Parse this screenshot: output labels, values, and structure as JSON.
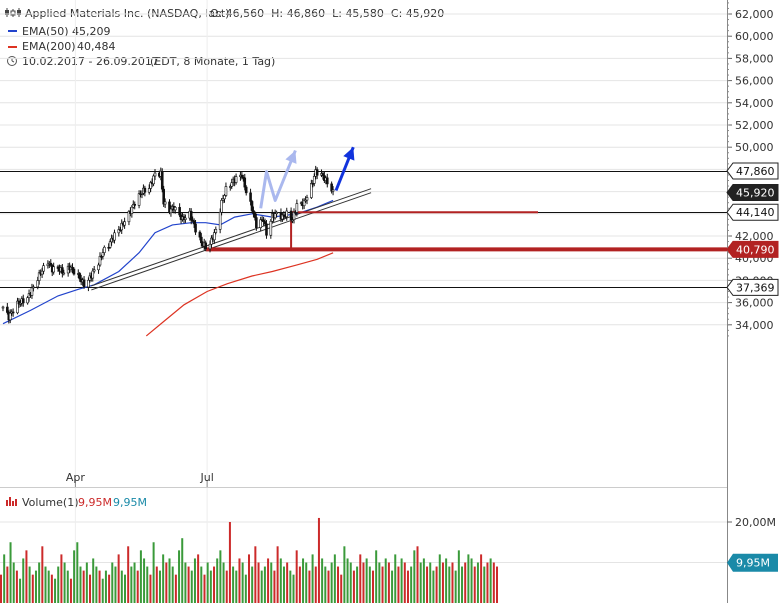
{
  "header": {
    "title": "Applied Materials Inc. (NASDAQ, last)",
    "ohlc": "O: 46,560  H: 46,860  L: 45,580  C: 45,920",
    "ema50_label": "EMA(50)",
    "ema50_value": "45,209",
    "ema200_label": "EMA(200)",
    "ema200_value": "40,484",
    "period": "10.02.2017 - 26.09.2017",
    "period_note": "(EDT, 8 Monate, 1 Tag)"
  },
  "volume_header": {
    "label": "Volume(1)",
    "value1": "9,95M",
    "value2": "9,95M"
  },
  "colors": {
    "up": "#3a9a3a",
    "down": "#cc2a2a",
    "ema50": "#2244cc",
    "ema200": "#dd3322",
    "support": "#b22222",
    "arrow_blue": "#1133dd",
    "arrow_light": "#aab8ee",
    "last_price_bg": "#222222",
    "volume_tag_bg": "#1a8aa8"
  },
  "chart_data": [
    {
      "type": "candlestick",
      "title": "Applied Materials Inc. (NASDAQ, last)",
      "ylim": [
        33000,
        63000
      ],
      "yticks": [
        34000,
        36000,
        38000,
        40000,
        42000,
        44000,
        46000,
        48000,
        50000,
        52000,
        54000,
        56000,
        58000,
        60000,
        62000
      ],
      "ytick_labels": [
        "34,000",
        "36,000",
        "38,000",
        "40,000",
        "42,000",
        "44,000",
        "46,000",
        "48,000",
        "50,000",
        "52,000",
        "54,000",
        "56,000",
        "58,000",
        "60,000",
        "62,000"
      ],
      "x_labels": [
        {
          "label": "Apr",
          "date": "2017-04-01"
        },
        {
          "label": "Jul",
          "date": "2017-07-01"
        }
      ],
      "date_range": [
        "2017-02-10",
        "2017-09-26"
      ],
      "price_tags": [
        {
          "value": 47860,
          "label": "47,860",
          "style": "outline"
        },
        {
          "value": 45920,
          "label": "45,920",
          "style": "last"
        },
        {
          "value": 44140,
          "label": "44,140",
          "style": "outline"
        },
        {
          "value": 40790,
          "label": "40,790",
          "style": "support"
        },
        {
          "value": 37369,
          "label": "37,369",
          "style": "outline"
        }
      ],
      "horizontal_lines": [
        47860,
        44140,
        37369
      ],
      "support_line": {
        "value": 40790,
        "from": "2017-06-30"
      },
      "target_segment": {
        "from": 44140,
        "to": 40790,
        "date": "2017-08-28"
      },
      "trendline": {
        "from": [
          "2017-04-12",
          37500
        ],
        "to": [
          "2017-09-26",
          45000
        ]
      },
      "arrows": [
        {
          "style": "light",
          "points": [
            [
              "2017-08-07",
              44500
            ],
            [
              "2017-08-11",
              47800
            ],
            [
              "2017-08-17",
              45200
            ],
            [
              "2017-08-31",
              49700
            ]
          ]
        },
        {
          "style": "strong",
          "points": [
            [
              "2017-09-28",
              46100
            ],
            [
              "2017-10-10",
              50000
            ]
          ]
        }
      ],
      "series": [
        {
          "name": "Applied Materials Inc.",
          "kind": "price",
          "points": [
            [
              "2017-02-10",
              35600
            ],
            [
              "2017-02-14",
              34700
            ],
            [
              "2017-02-20",
              35900
            ],
            [
              "2017-02-27",
              36400
            ],
            [
              "2017-03-03",
              37400
            ],
            [
              "2017-03-08",
              38700
            ],
            [
              "2017-03-13",
              39700
            ],
            [
              "2017-03-16",
              39000
            ],
            [
              "2017-03-20",
              39100
            ],
            [
              "2017-03-24",
              38700
            ],
            [
              "2017-03-28",
              39200
            ],
            [
              "2017-04-03",
              38400
            ],
            [
              "2017-04-07",
              37600
            ],
            [
              "2017-04-10",
              38000
            ],
            [
              "2017-04-17",
              39600
            ],
            [
              "2017-04-20",
              40600
            ],
            [
              "2017-04-24",
              41200
            ],
            [
              "2017-04-28",
              42100
            ],
            [
              "2017-05-03",
              42900
            ],
            [
              "2017-05-08",
              44000
            ],
            [
              "2017-05-12",
              45000
            ],
            [
              "2017-05-17",
              46000
            ],
            [
              "2017-05-22",
              46300
            ],
            [
              "2017-05-26",
              47600
            ],
            [
              "2017-05-30",
              47600
            ],
            [
              "2017-06-01",
              45000
            ],
            [
              "2017-06-05",
              44300
            ],
            [
              "2017-06-08",
              44600
            ],
            [
              "2017-06-14",
              43500
            ],
            [
              "2017-06-19",
              44000
            ],
            [
              "2017-06-23",
              42600
            ],
            [
              "2017-06-27",
              41400
            ],
            [
              "2017-06-30",
              41000
            ],
            [
              "2017-07-03",
              41300
            ],
            [
              "2017-07-07",
              42500
            ],
            [
              "2017-07-11",
              45000
            ],
            [
              "2017-07-14",
              46200
            ],
            [
              "2017-07-18",
              46800
            ],
            [
              "2017-07-21",
              47200
            ],
            [
              "2017-07-25",
              47500
            ],
            [
              "2017-07-28",
              46000
            ],
            [
              "2017-08-01",
              44500
            ],
            [
              "2017-08-04",
              43000
            ],
            [
              "2017-08-09",
              43500
            ],
            [
              "2017-08-11",
              42200
            ],
            [
              "2017-08-15",
              43800
            ],
            [
              "2017-08-18",
              44000
            ],
            [
              "2017-08-22",
              43700
            ],
            [
              "2017-08-25",
              44000
            ],
            [
              "2017-08-29",
              43500
            ],
            [
              "2017-09-01",
              44800
            ],
            [
              "2017-09-06",
              45000
            ],
            [
              "2017-09-11",
              46500
            ],
            [
              "2017-09-14",
              47800
            ],
            [
              "2017-09-19",
              47400
            ],
            [
              "2017-09-22",
              46800
            ],
            [
              "2017-09-26",
              45920
            ]
          ]
        },
        {
          "name": "EMA(50)",
          "kind": "ema50",
          "points": [
            [
              "2017-02-10",
              34100
            ],
            [
              "2017-03-01",
              35300
            ],
            [
              "2017-03-20",
              36600
            ],
            [
              "2017-04-03",
              37200
            ],
            [
              "2017-04-14",
              37600
            ],
            [
              "2017-05-01",
              38800
            ],
            [
              "2017-05-15",
              40500
            ],
            [
              "2017-05-26",
              42300
            ],
            [
              "2017-06-07",
              43000
            ],
            [
              "2017-06-20",
              43200
            ],
            [
              "2017-06-30",
              43200
            ],
            [
              "2017-07-10",
              43000
            ],
            [
              "2017-07-20",
              43700
            ],
            [
              "2017-08-01",
              44000
            ],
            [
              "2017-08-15",
              43700
            ],
            [
              "2017-09-01",
              44000
            ],
            [
              "2017-09-15",
              44600
            ],
            [
              "2017-09-26",
              45209
            ]
          ]
        },
        {
          "name": "EMA(200)",
          "kind": "ema200",
          "points": [
            [
              "2017-05-20",
              33000
            ],
            [
              "2017-06-01",
              34300
            ],
            [
              "2017-06-15",
              35800
            ],
            [
              "2017-07-01",
              37000
            ],
            [
              "2017-07-15",
              37700
            ],
            [
              "2017-08-01",
              38400
            ],
            [
              "2017-08-15",
              38800
            ],
            [
              "2017-09-01",
              39400
            ],
            [
              "2017-09-15",
              39900
            ],
            [
              "2017-09-26",
              40484
            ]
          ]
        }
      ]
    },
    {
      "type": "bar",
      "title": "Volume(1)",
      "ylim": [
        0,
        23000000
      ],
      "yticks": [
        10000000,
        20000000
      ],
      "ytick_labels": [
        "10,00M",
        "20,00M"
      ],
      "last_value": 9950000,
      "last_label": "9,95M",
      "volumes": [
        7,
        12,
        9,
        15,
        10,
        8,
        6,
        11,
        13,
        9,
        7,
        8,
        10,
        14,
        9,
        8,
        7,
        6,
        9,
        12,
        10,
        8,
        6,
        13,
        15,
        9,
        8,
        10,
        7,
        11,
        9,
        8,
        6,
        8,
        7,
        10,
        9,
        12,
        8,
        7,
        14,
        9,
        10,
        8,
        13,
        11,
        9,
        7,
        15,
        9,
        8,
        12,
        10,
        11,
        9,
        7,
        13,
        16,
        10,
        9,
        8,
        11,
        12,
        9,
        7,
        10,
        8,
        9,
        11,
        13,
        10,
        8,
        20,
        9,
        8,
        11,
        10,
        7,
        12,
        9,
        14,
        10,
        8,
        9,
        11,
        10,
        8,
        14,
        11,
        9,
        10,
        8,
        7,
        13,
        9,
        11,
        10,
        8,
        12,
        9,
        21,
        11,
        9,
        8,
        10,
        12,
        9,
        7,
        14,
        11,
        10,
        8,
        9,
        12,
        10,
        11,
        9,
        8,
        13,
        10,
        9,
        11,
        10,
        8,
        12,
        9,
        11,
        10,
        8,
        9,
        13,
        14,
        10,
        11,
        9,
        10,
        8,
        9,
        12,
        10,
        11,
        9,
        10,
        8,
        13,
        9,
        10,
        12,
        11,
        9,
        10,
        12,
        9,
        10,
        11,
        10,
        9
      ],
      "directions": [
        0,
        1,
        0,
        1,
        1,
        0,
        1,
        1,
        0,
        1,
        0,
        1,
        1,
        0,
        1,
        1,
        0,
        1,
        1,
        0,
        1,
        1,
        0,
        1,
        1,
        1,
        0,
        1,
        0,
        1,
        1,
        0,
        1,
        1,
        0,
        1,
        1,
        0,
        1,
        1,
        0,
        1,
        1,
        0,
        1,
        1,
        1,
        0,
        1,
        0,
        1,
        1,
        0,
        1,
        1,
        0,
        1,
        1,
        1,
        0,
        1,
        1,
        0,
        1,
        0,
        1,
        1,
        0,
        1,
        1,
        1,
        0,
        0,
        1,
        1,
        0,
        1,
        1,
        0,
        1,
        0,
        0,
        1,
        1,
        0,
        1,
        0,
        0,
        1,
        1,
        0,
        1,
        1,
        0,
        0,
        1,
        1,
        0,
        1,
        0,
        0,
        1,
        1,
        0,
        1,
        1,
        0,
        0,
        1,
        1,
        1,
        0,
        1,
        0,
        0,
        1,
        1,
        0,
        1,
        1,
        0,
        1,
        0,
        1,
        1,
        0,
        1,
        0,
        0,
        1,
        1,
        0,
        1,
        1,
        0,
        1,
        1,
        0,
        1,
        0,
        1,
        1,
        0,
        1,
        1,
        1,
        0,
        1,
        1,
        0,
        1,
        0,
        1,
        0,
        1,
        0,
        0
      ]
    }
  ]
}
